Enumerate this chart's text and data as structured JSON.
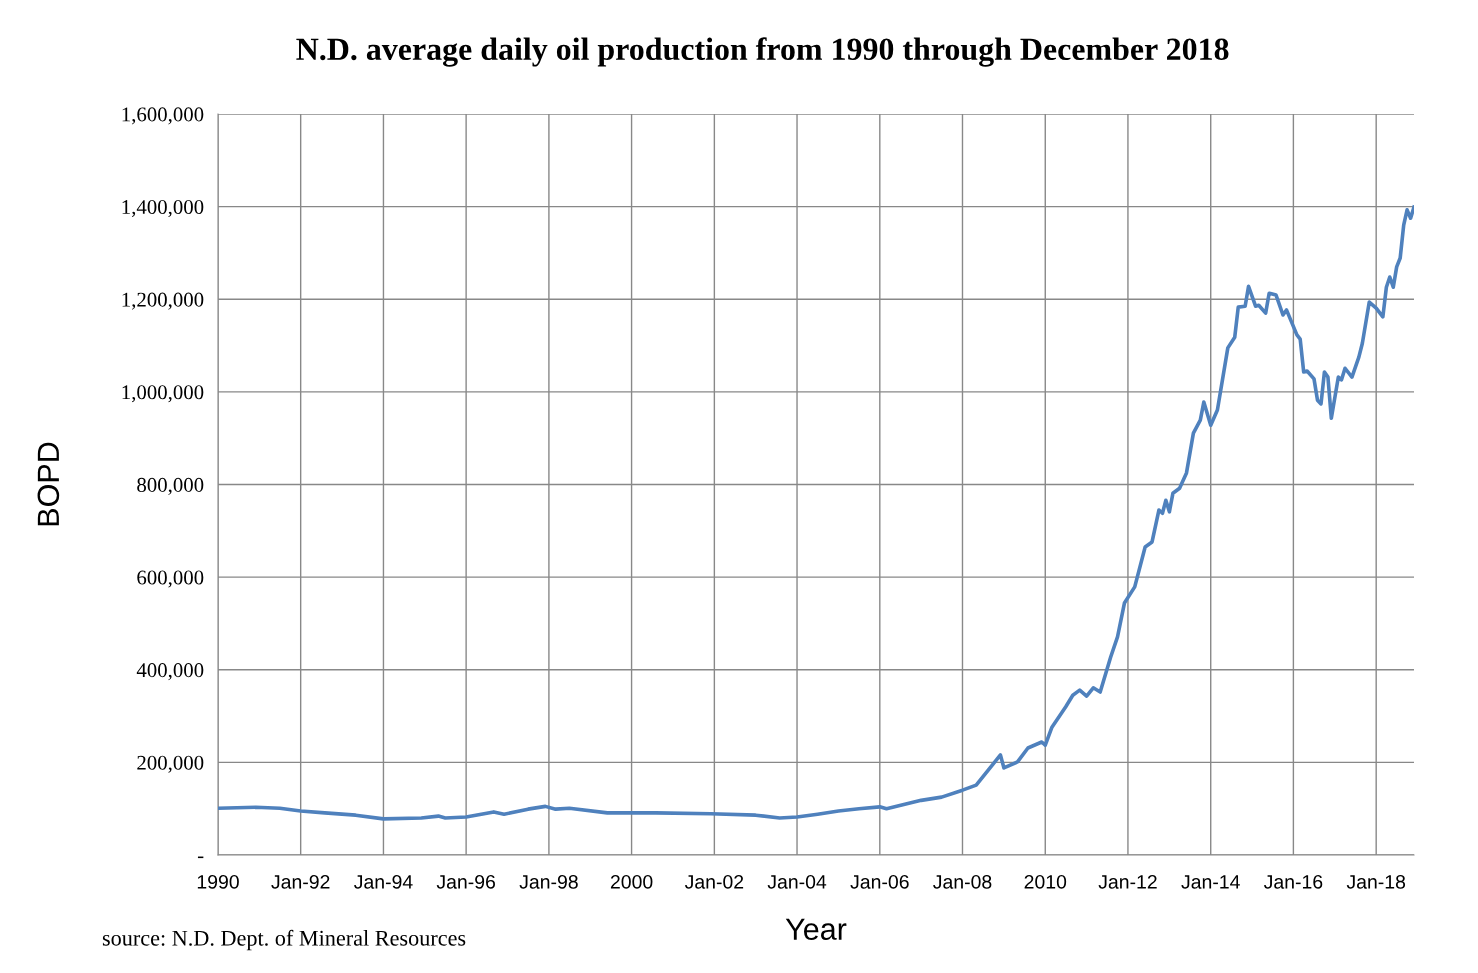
{
  "chart_data": {
    "type": "line",
    "title": "N.D. average daily oil production from 1990 through December 2018",
    "xlabel": "Year",
    "ylabel": "BOPD",
    "annotations": [
      "source: N.D. Dept. of Mineral Resources"
    ],
    "series": [
      {
        "color": "#4f81bd",
        "x": [
          "1990-01",
          "1990-12",
          "1991-07",
          "1992-01",
          "1992-08",
          "1993-05",
          "1994-01",
          "1994-12",
          "1995-05",
          "1995-07",
          "1996-01",
          "1996-09",
          "1996-12",
          "1997-07",
          "1997-12",
          "1998-03",
          "1998-07",
          "1999-06",
          "2000-08",
          "2001-12",
          "2003-01",
          "2003-08",
          "2004-01",
          "2004-07",
          "2005-01",
          "2005-07",
          "2006-01",
          "2006-03",
          "2007-01",
          "2007-07",
          "2008-01",
          "2008-05",
          "2008-12",
          "2009-01",
          "2009-05",
          "2009-08",
          "2009-12",
          "2010-01",
          "2010-03",
          "2010-07",
          "2010-09",
          "2010-11",
          "2011-01",
          "2011-03",
          "2011-05",
          "2011-08",
          "2011-10",
          "2011-12",
          "2012-03",
          "2012-06",
          "2012-08",
          "2012-10",
          "2012-11",
          "2012-12",
          "2013-01",
          "2013-02",
          "2013-04",
          "2013-06",
          "2013-08",
          "2013-10",
          "2013-11",
          "2014-01",
          "2014-03",
          "2014-06",
          "2014-08",
          "2014-09",
          "2014-11",
          "2014-12",
          "2015-02",
          "2015-03",
          "2015-05",
          "2015-06",
          "2015-08",
          "2015-10",
          "2015-11",
          "2016-02",
          "2016-03",
          "2016-04",
          "2016-05",
          "2016-07",
          "2016-08",
          "2016-09",
          "2016-10",
          "2016-11",
          "2016-12",
          "2017-02",
          "2017-03",
          "2017-04",
          "2017-06",
          "2017-08",
          "2017-09",
          "2017-11",
          "2018-01",
          "2018-03",
          "2018-04",
          "2018-05",
          "2018-06",
          "2018-07",
          "2018-08",
          "2018-09",
          "2018-10",
          "2018-11",
          "2018-12"
        ],
        "values": [
          101000,
          103000,
          101000,
          95000,
          91000,
          86000,
          78000,
          80000,
          84000,
          80000,
          82000,
          93000,
          88000,
          99000,
          105000,
          99000,
          101000,
          91000,
          91000,
          89000,
          86000,
          80000,
          82000,
          88000,
          95000,
          100000,
          104000,
          100000,
          118000,
          125000,
          140000,
          151000,
          216000,
          188000,
          201000,
          231000,
          244000,
          237000,
          276000,
          320000,
          345000,
          356000,
          343000,
          361000,
          352000,
          427000,
          471000,
          544000,
          579000,
          665000,
          676000,
          745000,
          738000,
          766000,
          741000,
          781000,
          792000,
          825000,
          911000,
          939000,
          978000,
          928000,
          961000,
          1095000,
          1118000,
          1183000,
          1185000,
          1228000,
          1185000,
          1187000,
          1170000,
          1213000,
          1209000,
          1166000,
          1177000,
          1123000,
          1114000,
          1043000,
          1045000,
          1028000,
          982000,
          974000,
          1043000,
          1032000,
          943000,
          1032000,
          1026000,
          1051000,
          1032000,
          1075000,
          1105000,
          1194000,
          1181000,
          1162000,
          1226000,
          1248000,
          1226000,
          1270000,
          1289000,
          1360000,
          1393000,
          1375000,
          1399000
        ]
      }
    ],
    "xlim": [
      "1990-01",
      "2018-12"
    ],
    "xticks": [
      {
        "value": "1990-01",
        "label": "1990"
      },
      {
        "value": "1992-01",
        "label": "Jan-92"
      },
      {
        "value": "1994-01",
        "label": "Jan-94"
      },
      {
        "value": "1996-01",
        "label": "Jan-96"
      },
      {
        "value": "1998-01",
        "label": "Jan-98"
      },
      {
        "value": "2000-01",
        "label": "2000"
      },
      {
        "value": "2002-01",
        "label": "Jan-02"
      },
      {
        "value": "2004-01",
        "label": "Jan-04"
      },
      {
        "value": "2006-01",
        "label": "Jan-06"
      },
      {
        "value": "2008-01",
        "label": "Jan-08"
      },
      {
        "value": "2010-01",
        "label": "2010"
      },
      {
        "value": "2012-01",
        "label": "Jan-12"
      },
      {
        "value": "2014-01",
        "label": "Jan-14"
      },
      {
        "value": "2016-01",
        "label": "Jan-16"
      },
      {
        "value": "2018-01",
        "label": "Jan-18"
      }
    ],
    "ylim": [
      0,
      1600000
    ],
    "yticks": [
      {
        "value": 0,
        "label": "-"
      },
      {
        "value": 200000,
        "label": "200,000"
      },
      {
        "value": 400000,
        "label": "400,000"
      },
      {
        "value": 600000,
        "label": "600,000"
      },
      {
        "value": 800000,
        "label": "800,000"
      },
      {
        "value": 1000000,
        "label": "1,000,000"
      },
      {
        "value": 1200000,
        "label": "1,200,000"
      },
      {
        "value": 1400000,
        "label": "1,400,000"
      },
      {
        "value": 1600000,
        "label": "1,600,000"
      }
    ],
    "grid": true,
    "legend": false,
    "marker": "none",
    "line_style": "solid"
  }
}
